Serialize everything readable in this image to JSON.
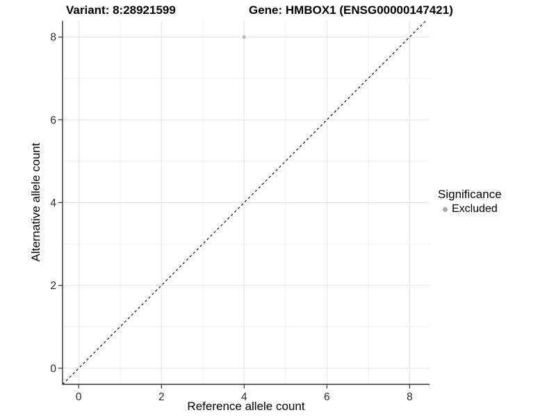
{
  "chart_data": {
    "type": "scatter",
    "titles": {
      "variant": "Variant: 8:28921599",
      "gene": "Gene: HMBOX1 (ENSG00000147421)"
    },
    "xlabel": "Reference allele count",
    "ylabel": "Alternative allele count",
    "xlim": [
      -0.39,
      8.48
    ],
    "ylim": [
      -0.39,
      8.39
    ],
    "xticks": [
      0,
      2,
      4,
      6,
      8
    ],
    "yticks": [
      0,
      2,
      4,
      6,
      8
    ],
    "xminor": [
      1,
      3,
      5,
      7
    ],
    "yminor": [
      1,
      3,
      5,
      7
    ],
    "grid": "major and minor gridlines, light gray on white panel",
    "series": [
      {
        "name": "Excluded",
        "marker": "circle",
        "color": "#b9b9b9",
        "points": [
          {
            "x": 4,
            "y": 8
          }
        ]
      }
    ],
    "reference_line": {
      "type": "identity",
      "slope": 1,
      "intercept": 0,
      "style": "dashed",
      "color": "#111111"
    },
    "legend": {
      "title": "Significance",
      "position": "right",
      "entries": [
        {
          "label": "Excluded",
          "color": "#ababab",
          "marker": "dot"
        }
      ]
    },
    "colors": {
      "background": "#ffffff",
      "grid_major": "#e3e3e3",
      "grid_minor": "#efefef",
      "axis_line": "#333333",
      "tick_text": "#2b2b2b",
      "title_text": "#000000"
    }
  }
}
